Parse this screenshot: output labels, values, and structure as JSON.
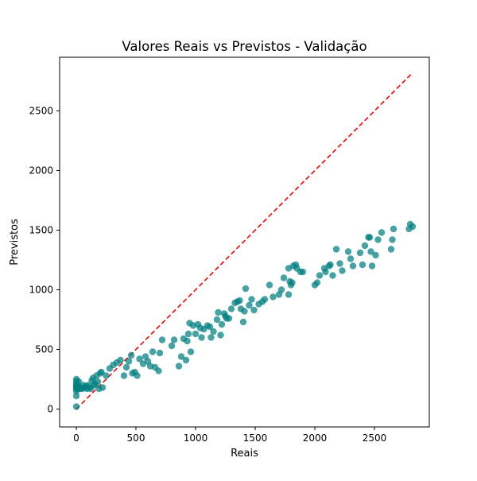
{
  "chart_data": {
    "type": "scatter",
    "title": "Valores Reais vs Previstos - Validação",
    "xlabel": "Reais",
    "ylabel": "Previstos",
    "xlim": [
      -140,
      2960
    ],
    "ylim": [
      -150,
      2950
    ],
    "xticks": [
      0,
      500,
      1000,
      1500,
      2000,
      2500
    ],
    "yticks": [
      0,
      500,
      1000,
      1500,
      2000,
      2500
    ],
    "grid": false,
    "legend": "none",
    "colors": {
      "points": "#008080",
      "reference_line": "#ff0000"
    },
    "reference_line": {
      "style": "dashed",
      "from": [
        0,
        0
      ],
      "to": [
        2810,
        2810
      ]
    },
    "points": [
      [
        0,
        20
      ],
      [
        0,
        110
      ],
      [
        0,
        150
      ],
      [
        0,
        170
      ],
      [
        0,
        180
      ],
      [
        0,
        190
      ],
      [
        0,
        200
      ],
      [
        0,
        210
      ],
      [
        0,
        230
      ],
      [
        0,
        250
      ],
      [
        10,
        170
      ],
      [
        10,
        200
      ],
      [
        20,
        180
      ],
      [
        20,
        230
      ],
      [
        30,
        170
      ],
      [
        40,
        180
      ],
      [
        50,
        170
      ],
      [
        60,
        200
      ],
      [
        70,
        180
      ],
      [
        80,
        190
      ],
      [
        90,
        170
      ],
      [
        100,
        200
      ],
      [
        110,
        180
      ],
      [
        120,
        170
      ],
      [
        130,
        240
      ],
      [
        140,
        260
      ],
      [
        150,
        200
      ],
      [
        160,
        210
      ],
      [
        170,
        280
      ],
      [
        180,
        230
      ],
      [
        190,
        170
      ],
      [
        200,
        300
      ],
      [
        210,
        310
      ],
      [
        220,
        180
      ],
      [
        250,
        280
      ],
      [
        280,
        340
      ],
      [
        310,
        370
      ],
      [
        340,
        390
      ],
      [
        370,
        410
      ],
      [
        400,
        280
      ],
      [
        420,
        350
      ],
      [
        440,
        400
      ],
      [
        460,
        450
      ],
      [
        470,
        300
      ],
      [
        490,
        310
      ],
      [
        510,
        280
      ],
      [
        530,
        420
      ],
      [
        560,
        380
      ],
      [
        580,
        440
      ],
      [
        600,
        400
      ],
      [
        620,
        360
      ],
      [
        640,
        480
      ],
      [
        660,
        350
      ],
      [
        690,
        320
      ],
      [
        700,
        470
      ],
      [
        720,
        580
      ],
      [
        800,
        530
      ],
      [
        820,
        580
      ],
      [
        860,
        360
      ],
      [
        880,
        440
      ],
      [
        900,
        590
      ],
      [
        920,
        410
      ],
      [
        930,
        570
      ],
      [
        940,
        630
      ],
      [
        950,
        720
      ],
      [
        960,
        480
      ],
      [
        980,
        700
      ],
      [
        1000,
        630
      ],
      [
        1020,
        710
      ],
      [
        1040,
        680
      ],
      [
        1050,
        600
      ],
      [
        1070,
        670
      ],
      [
        1100,
        700
      ],
      [
        1120,
        690
      ],
      [
        1130,
        600
      ],
      [
        1150,
        650
      ],
      [
        1180,
        750
      ],
      [
        1190,
        810
      ],
      [
        1210,
        620
      ],
      [
        1220,
        710
      ],
      [
        1240,
        800
      ],
      [
        1250,
        780
      ],
      [
        1260,
        760
      ],
      [
        1280,
        760
      ],
      [
        1300,
        840
      ],
      [
        1330,
        890
      ],
      [
        1350,
        900
      ],
      [
        1370,
        910
      ],
      [
        1380,
        840
      ],
      [
        1400,
        730
      ],
      [
        1410,
        820
      ],
      [
        1420,
        1010
      ],
      [
        1450,
        870
      ],
      [
        1470,
        920
      ],
      [
        1490,
        830
      ],
      [
        1530,
        880
      ],
      [
        1560,
        900
      ],
      [
        1580,
        920
      ],
      [
        1620,
        1040
      ],
      [
        1650,
        940
      ],
      [
        1700,
        960
      ],
      [
        1720,
        1000
      ],
      [
        1740,
        1100
      ],
      [
        1780,
        1180
      ],
      [
        1780,
        960
      ],
      [
        1790,
        1070
      ],
      [
        1800,
        1040
      ],
      [
        1810,
        1060
      ],
      [
        1820,
        1200
      ],
      [
        1840,
        1210
      ],
      [
        1850,
        1180
      ],
      [
        1880,
        1150
      ],
      [
        1900,
        1150
      ],
      [
        2000,
        1040
      ],
      [
        2020,
        1060
      ],
      [
        2040,
        1120
      ],
      [
        2080,
        1180
      ],
      [
        2090,
        1150
      ],
      [
        2120,
        1200
      ],
      [
        2130,
        1210
      ],
      [
        2150,
        1120
      ],
      [
        2180,
        1340
      ],
      [
        2210,
        1220
      ],
      [
        2230,
        1160
      ],
      [
        2280,
        1320
      ],
      [
        2300,
        1260
      ],
      [
        2320,
        1200
      ],
      [
        2380,
        1310
      ],
      [
        2400,
        1210
      ],
      [
        2420,
        1370
      ],
      [
        2450,
        1440
      ],
      [
        2460,
        1440
      ],
      [
        2470,
        1320
      ],
      [
        2480,
        1200
      ],
      [
        2510,
        1290
      ],
      [
        2530,
        1420
      ],
      [
        2560,
        1480
      ],
      [
        2640,
        1340
      ],
      [
        2650,
        1420
      ],
      [
        2660,
        1510
      ],
      [
        2790,
        1510
      ],
      [
        2800,
        1550
      ],
      [
        2820,
        1530
      ]
    ]
  }
}
